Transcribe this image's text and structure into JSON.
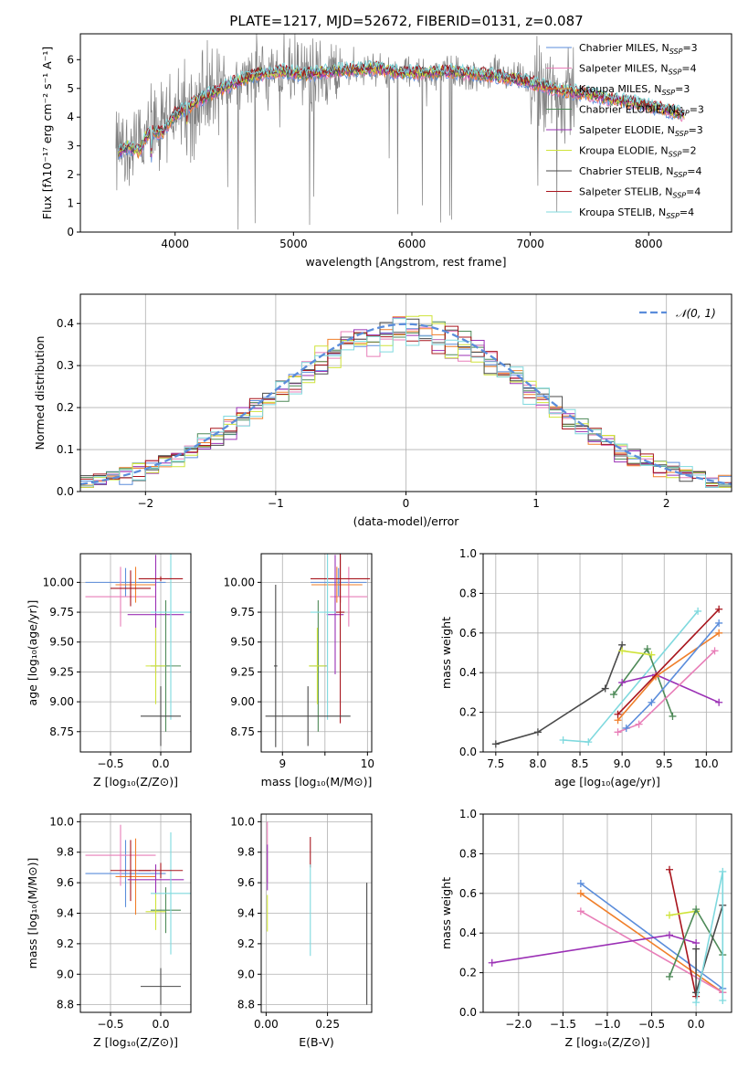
{
  "figure": {
    "title": "PLATE=1217, MJD=52672, FIBERID=0131, z=0.087"
  },
  "chart_data": [
    {
      "id": "spectrum",
      "type": "line",
      "xlabel": "wavelength [Angstrom, rest frame]",
      "ylabel": "Flux [fλ10⁻¹⁷ erg cm⁻² s⁻¹ A⁻¹]",
      "xlim": [
        3200,
        8700
      ],
      "ylim": [
        0,
        6.9
      ],
      "xticks": [
        4000,
        5000,
        6000,
        7000,
        8000
      ],
      "yticks": [
        0,
        1,
        2,
        3,
        4,
        5,
        6
      ],
      "grid": false,
      "legend_position": "top-right",
      "continuum": {
        "x": [
          3500,
          3600,
          3700,
          3750,
          3800,
          3900,
          4000,
          4100,
          4200,
          4300,
          4400,
          4500,
          4700,
          4900,
          5100,
          5300,
          5500,
          5700,
          5900,
          6100,
          6300,
          6500,
          6700,
          6900,
          7100,
          7300,
          7500,
          7700,
          7900,
          8100,
          8300
        ],
        "y": [
          2.7,
          3.0,
          2.8,
          3.3,
          3.5,
          3.5,
          4.1,
          4.3,
          4.6,
          4.8,
          5.0,
          5.2,
          5.5,
          5.6,
          5.5,
          5.6,
          5.65,
          5.7,
          5.55,
          5.55,
          5.6,
          5.5,
          5.45,
          5.3,
          5.1,
          4.9,
          4.8,
          4.6,
          4.5,
          4.3,
          4.1
        ]
      },
      "series": [
        {
          "name": "Chabrier MILES, N",
          "sub": "SSP",
          "suffix": "=3",
          "color": "#5b8ddb"
        },
        {
          "name": "Salpeter MILES, N",
          "sub": "SSP",
          "suffix": "=4",
          "color": "#e87eb8"
        },
        {
          "name": "Kroupa MILES, N",
          "sub": "SSP",
          "suffix": "=3",
          "color": "#f07f2a"
        },
        {
          "name": "Chabrier ELODIE, N",
          "sub": "SSP",
          "suffix": "=3",
          "color": "#4e8a58"
        },
        {
          "name": "Salpeter ELODIE, N",
          "sub": "SSP",
          "suffix": "=3",
          "color": "#9b30b5"
        },
        {
          "name": "Kroupa ELODIE, N",
          "sub": "SSP",
          "suffix": "=2",
          "color": "#cfe33a"
        },
        {
          "name": "Chabrier STELIB, N",
          "sub": "SSP",
          "suffix": "=4",
          "color": "#4a4a4a"
        },
        {
          "name": "Salpeter STELIB, N",
          "sub": "SSP",
          "suffix": "=4",
          "color": "#a8151d"
        },
        {
          "name": "Kroupa STELIB, N",
          "sub": "SSP",
          "suffix": "=4",
          "color": "#7fd9de"
        }
      ]
    },
    {
      "id": "residuals",
      "type": "line",
      "xlabel": "(data-model)/error",
      "ylabel": "Normed distribution",
      "xlim": [
        -2.5,
        2.5
      ],
      "ylim": [
        0,
        0.47
      ],
      "xticks": [
        -2,
        -1,
        0,
        1,
        2
      ],
      "yticks": [
        0.0,
        0.1,
        0.2,
        0.3,
        0.4
      ],
      "grid": true,
      "legend_position": "top-right",
      "reference_curve": {
        "name": "𝒩(0, 1)",
        "color": "#5b8ddb",
        "style": "dashed"
      }
    },
    {
      "id": "age_vs_Z",
      "type": "scatter",
      "xlabel": "Z [log₁₀(Z/Z⊙)]",
      "ylabel": "age  [log₁₀(age/yr)]",
      "xlim": [
        -0.8,
        0.3
      ],
      "ylim": [
        8.58,
        10.24
      ],
      "xticks": [
        -0.5,
        0.0
      ],
      "yticks": [
        8.75,
        9.0,
        9.25,
        9.5,
        9.75,
        10.0
      ],
      "grid": true,
      "points": [
        {
          "x": -0.35,
          "xerr": 0.4,
          "y": 10.0,
          "yerr": 0.12,
          "color": "#5b8ddb"
        },
        {
          "x": -0.4,
          "xerr": 0.35,
          "y": 9.88,
          "yerr": 0.25,
          "color": "#e87eb8"
        },
        {
          "x": -0.25,
          "xerr": 0.2,
          "y": 9.98,
          "yerr": 0.15,
          "color": "#f07f2a"
        },
        {
          "x": -0.3,
          "xerr": 0.2,
          "y": 9.95,
          "yerr": 0.15,
          "color": "#a8151d"
        },
        {
          "x": -0.05,
          "xerr": 0.28,
          "y": 9.73,
          "yerr": 0.5,
          "color": "#9b30b5"
        },
        {
          "x": 0.05,
          "xerr": 0.15,
          "y": 9.3,
          "yerr": 0.55,
          "color": "#4e8a58"
        },
        {
          "x": -0.05,
          "xerr": 0.1,
          "y": 9.3,
          "yerr": 0.32,
          "color": "#cfe33a"
        },
        {
          "x": 0.1,
          "xerr": 0.2,
          "y": 9.75,
          "yerr": 0.9,
          "color": "#7fd9de"
        },
        {
          "x": 0.0,
          "xerr": 0.22,
          "y": 10.03,
          "yerr": 0.02,
          "color": "#a8151d"
        },
        {
          "x": 0.0,
          "xerr": 0.2,
          "y": 8.88,
          "yerr": 0.25,
          "color": "#4a4a4a"
        }
      ]
    },
    {
      "id": "age_vs_mass",
      "type": "scatter",
      "xlabel": "mass [log₁₀(M/M⊙)]",
      "ylabel": "",
      "xlim": [
        8.75,
        10.05
      ],
      "ylim": [
        8.58,
        10.24
      ],
      "xticks": [
        9,
        9.5,
        10
      ],
      "tick_labels": [
        "9",
        "",
        "10"
      ],
      "yticks": [
        8.75,
        9.0,
        9.25,
        9.5,
        9.75,
        10.0
      ],
      "grid": true,
      "points": [
        {
          "x": 9.66,
          "xerr": 0.33,
          "y": 10.0,
          "yerr": 0.12,
          "color": "#5b8ddb"
        },
        {
          "x": 9.78,
          "xerr": 0.22,
          "y": 9.88,
          "yerr": 0.25,
          "color": "#e87eb8"
        },
        {
          "x": 9.64,
          "xerr": 0.3,
          "y": 9.98,
          "yerr": 0.15,
          "color": "#f07f2a"
        },
        {
          "x": 9.68,
          "xerr": 0.35,
          "y": 10.03,
          "yerr": 0.2,
          "color": "#a8151d"
        },
        {
          "x": 9.62,
          "xerr": 0.1,
          "y": 9.73,
          "yerr": 0.5,
          "color": "#9b30b5"
        },
        {
          "x": 9.42,
          "xerr": 0.1,
          "y": 9.3,
          "yerr": 0.55,
          "color": "#4e8a58"
        },
        {
          "x": 9.41,
          "xerr": 0.1,
          "y": 9.3,
          "yerr": 0.32,
          "color": "#cfe33a"
        },
        {
          "x": 9.53,
          "xerr": 0.2,
          "y": 9.75,
          "yerr": 0.9,
          "color": "#7fd9de"
        },
        {
          "x": 9.68,
          "xerr": 0.05,
          "y": 9.75,
          "yerr": 0.93,
          "color": "#a8151d"
        },
        {
          "x": 9.3,
          "xerr": 0.5,
          "y": 8.88,
          "yerr": 0.25,
          "color": "#4a4a4a"
        },
        {
          "x": 8.92,
          "xerr": 0.02,
          "y": 9.3,
          "yerr": 0.68,
          "color": "#4a4a4a"
        }
      ]
    },
    {
      "id": "weight_vs_age",
      "type": "line",
      "xlabel": "age  [log₁₀(age/yr)]",
      "ylabel": "mass weight",
      "xlim": [
        7.35,
        10.3
      ],
      "ylim": [
        0,
        1.0
      ],
      "xticks": [
        7.5,
        8.0,
        8.5,
        9.0,
        9.5,
        10.0
      ],
      "yticks": [
        0.0,
        0.2,
        0.4,
        0.6,
        0.8,
        1.0
      ],
      "grid": true,
      "series": [
        {
          "color": "#4a4a4a",
          "x": [
            7.5,
            8.0,
            8.8,
            9.0
          ],
          "y": [
            0.04,
            0.1,
            0.32,
            0.54
          ]
        },
        {
          "color": "#7fd9de",
          "x": [
            8.3,
            8.6,
            9.9
          ],
          "y": [
            0.06,
            0.05,
            0.71
          ]
        },
        {
          "color": "#4e8a58",
          "x": [
            8.9,
            9.3,
            9.6
          ],
          "y": [
            0.29,
            0.52,
            0.18
          ]
        },
        {
          "color": "#cfe33a",
          "x": [
            9.0,
            9.35
          ],
          "y": [
            0.51,
            0.49
          ]
        },
        {
          "color": "#9b30b5",
          "x": [
            9.0,
            9.4,
            10.15
          ],
          "y": [
            0.35,
            0.39,
            0.25
          ]
        },
        {
          "color": "#e87eb8",
          "x": [
            8.95,
            9.2,
            10.1
          ],
          "y": [
            0.1,
            0.14,
            0.51
          ]
        },
        {
          "color": "#f07f2a",
          "x": [
            8.95,
            9.4,
            10.15
          ],
          "y": [
            0.16,
            0.38,
            0.6
          ]
        },
        {
          "color": "#5b8ddb",
          "x": [
            9.05,
            9.35,
            10.15
          ],
          "y": [
            0.12,
            0.25,
            0.65
          ]
        },
        {
          "color": "#a8151d",
          "x": [
            8.95,
            10.15
          ],
          "y": [
            0.19,
            0.72
          ]
        }
      ]
    },
    {
      "id": "mass_vs_Z",
      "type": "scatter",
      "xlabel": "Z [log₁₀(Z/Z⊙)]",
      "ylabel": "mass [log₁₀(M/M⊙)]",
      "xlim": [
        -0.8,
        0.3
      ],
      "ylim": [
        8.75,
        10.05
      ],
      "xticks": [
        -0.5,
        0.0
      ],
      "yticks": [
        8.8,
        9.0,
        9.2,
        9.4,
        9.6,
        9.8,
        10.0
      ],
      "grid": true,
      "points": [
        {
          "x": -0.35,
          "xerr": 0.4,
          "y": 9.66,
          "yerr": 0.22,
          "color": "#5b8ddb"
        },
        {
          "x": -0.4,
          "xerr": 0.35,
          "y": 9.78,
          "yerr": 0.2,
          "color": "#e87eb8"
        },
        {
          "x": -0.25,
          "xerr": 0.2,
          "y": 9.64,
          "yerr": 0.25,
          "color": "#f07f2a"
        },
        {
          "x": -0.3,
          "xerr": 0.2,
          "y": 9.68,
          "yerr": 0.2,
          "color": "#a8151d"
        },
        {
          "x": -0.05,
          "xerr": 0.28,
          "y": 9.62,
          "yerr": 0.1,
          "color": "#9b30b5"
        },
        {
          "x": 0.05,
          "xerr": 0.15,
          "y": 9.42,
          "yerr": 0.15,
          "color": "#4e8a58"
        },
        {
          "x": -0.05,
          "xerr": 0.1,
          "y": 9.41,
          "yerr": 0.12,
          "color": "#cfe33a"
        },
        {
          "x": 0.1,
          "xerr": 0.2,
          "y": 9.53,
          "yerr": 0.4,
          "color": "#7fd9de"
        },
        {
          "x": 0.0,
          "xerr": 0.22,
          "y": 9.68,
          "yerr": 0.05,
          "color": "#a8151d"
        },
        {
          "x": 0.0,
          "xerr": 0.2,
          "y": 8.92,
          "yerr": 0.12,
          "color": "#4a4a4a"
        }
      ]
    },
    {
      "id": "mass_vs_EBV",
      "type": "scatter",
      "xlabel": "E(B-V)",
      "ylabel": "",
      "xlim": [
        -0.02,
        0.43
      ],
      "ylim": [
        8.75,
        10.05
      ],
      "xticks": [
        0.0,
        0.25
      ],
      "tick_labels": [
        "0.00",
        "0.25"
      ],
      "yticks": [
        8.8,
        9.0,
        9.2,
        9.4,
        9.6,
        9.8,
        10.0
      ],
      "grid": true,
      "points": [
        {
          "x": 0.005,
          "xerr": 0.0,
          "y": 9.8,
          "yerr": 0.2,
          "color": "#e87eb8"
        },
        {
          "x": 0.005,
          "xerr": 0.0,
          "y": 9.7,
          "yerr": 0.15,
          "color": "#9b30b5"
        },
        {
          "x": 0.005,
          "xerr": 0.0,
          "y": 9.4,
          "yerr": 0.12,
          "color": "#cfe33a"
        },
        {
          "x": 0.18,
          "xerr": 0.0,
          "y": 9.8,
          "yerr": 0.1,
          "color": "#a8151d"
        },
        {
          "x": 0.18,
          "xerr": 0.0,
          "y": 9.42,
          "yerr": 0.3,
          "color": "#7fd9de"
        },
        {
          "x": 0.41,
          "xerr": 0.0,
          "y": 9.2,
          "yerr": 0.4,
          "color": "#4a4a4a"
        }
      ]
    },
    {
      "id": "weight_vs_Z",
      "type": "line",
      "xlabel": "Z [log₁₀(Z/Z⊙)]",
      "ylabel": "mass weight",
      "xlim": [
        -2.4,
        0.4
      ],
      "ylim": [
        0,
        1.0
      ],
      "xticks": [
        -2.0,
        -1.5,
        -1.0,
        -0.5,
        0.0
      ],
      "yticks": [
        0.0,
        0.2,
        0.4,
        0.6,
        0.8,
        1.0
      ],
      "grid": true,
      "series": [
        {
          "color": "#5b8ddb",
          "x": [
            -1.3,
            0.3
          ],
          "y": [
            0.65,
            0.12
          ]
        },
        {
          "color": "#f07f2a",
          "x": [
            -1.3,
            0.3
          ],
          "y": [
            0.6,
            0.1
          ]
        },
        {
          "color": "#e87eb8",
          "x": [
            -1.3,
            0.3
          ],
          "y": [
            0.51,
            0.1
          ]
        },
        {
          "color": "#9b30b5",
          "x": [
            -2.3,
            -0.3,
            0.0
          ],
          "y": [
            0.25,
            0.39,
            0.35
          ]
        },
        {
          "color": "#a8151d",
          "x": [
            -0.3,
            0.0
          ],
          "y": [
            0.72,
            0.08
          ]
        },
        {
          "color": "#cfe33a",
          "x": [
            -0.3,
            0.0
          ],
          "y": [
            0.49,
            0.51
          ]
        },
        {
          "color": "#4e8a58",
          "x": [
            -0.3,
            0.0,
            0.3
          ],
          "y": [
            0.18,
            0.52,
            0.29
          ]
        },
        {
          "color": "#4a4a4a",
          "x": [
            0.0,
            0.0,
            0.3
          ],
          "y": [
            0.32,
            0.1,
            0.54
          ]
        },
        {
          "color": "#7fd9de",
          "x": [
            0.0,
            0.3,
            0.3
          ],
          "y": [
            0.05,
            0.71,
            0.06
          ]
        }
      ]
    }
  ]
}
